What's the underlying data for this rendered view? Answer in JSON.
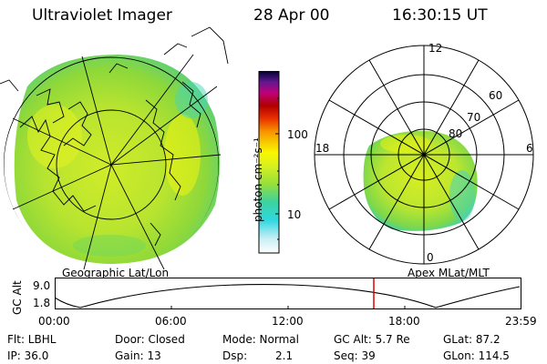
{
  "header": {
    "instrument": "Ultraviolet Imager",
    "date": "28 Apr 00",
    "time": "16:30:15 UT"
  },
  "geo_panel": {
    "label": "Geographic Lat/Lon"
  },
  "polar_panel": {
    "label": "Apex MLat/MLT",
    "mlt_labels": {
      "top": "12",
      "right": "6",
      "bottom": "0",
      "left": "18"
    },
    "lat_rings": [
      "60",
      "70",
      "80"
    ]
  },
  "colorbar": {
    "title": "photon cm⁻²s⁻¹",
    "ticks": [
      "100",
      "10"
    ],
    "scale": "log",
    "colors": [
      "#ffffff",
      "#c8eef4",
      "#30d8e0",
      "#3cd2a0",
      "#98e03a",
      "#d8f020",
      "#f8f800",
      "#f8c800",
      "#f89000",
      "#e83000",
      "#b00000",
      "#c0007a",
      "#601890",
      "#000030"
    ]
  },
  "altitude_track": {
    "axis_label": "GC Alt",
    "y_ticks": [
      "9.0",
      "1.8"
    ],
    "x_ticks": [
      "00:00",
      "06:00",
      "12:00",
      "18:00",
      "23:59"
    ],
    "current_time_marker_color": "#dd0000"
  },
  "footer": {
    "flt": "Flt: LBHL",
    "ip": "IP: 36.0",
    "door": "Door: Closed",
    "gain": "Gain: 13",
    "mode": "Mode: Normal",
    "dsp_label": "Dsp:",
    "dsp_value": "2.1",
    "gc_alt": "GC Alt: 5.7 Re",
    "seq": "Seq: 39",
    "glat": "GLat: 87.2",
    "glon": "GLon: 114.5"
  }
}
